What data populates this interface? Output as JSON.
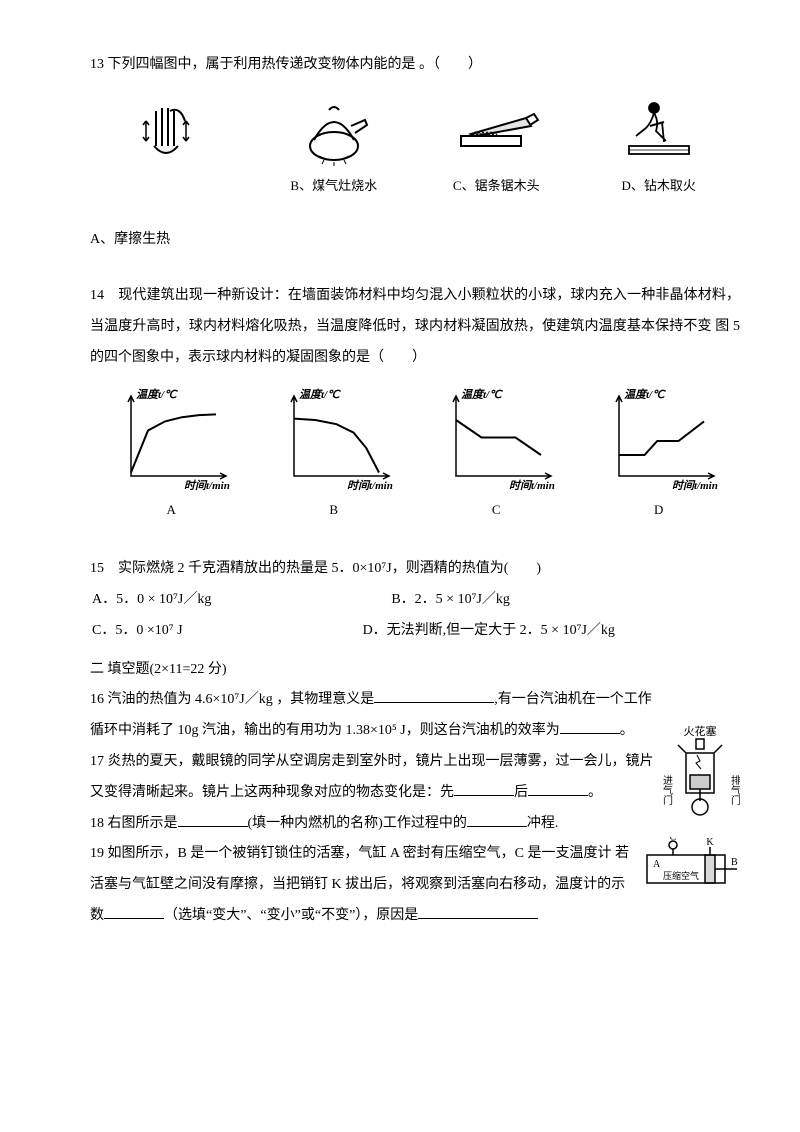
{
  "q13": {
    "stem": "13 下列四幅图中，属于利用热传递改变物体内能的是 。（　　）",
    "optA": "A、摩擦生热",
    "optB": "B、煤气灶烧水",
    "optC": "C、锯条锯木头",
    "optD": "D、钻木取火"
  },
  "q14": {
    "stem": "14　现代建筑出现一种新设计：在墙面装饰材料中均匀混入小颗粒状的小球，球内充入一种非晶体材料，当温度升高时，球内材料熔化吸热，当温度降低时，球内材料凝固放热，使建筑内温度基本保持不变 图 5 的四个图象中，表示球内材料的凝固图象的是（　　）",
    "ylabel": "温度t/℃",
    "xlabel": "时间t/min",
    "A": "A",
    "B": "B",
    "C": "C",
    "D": "D",
    "graphs": {
      "A": [
        [
          0,
          5
        ],
        [
          20,
          65
        ],
        [
          40,
          78
        ],
        [
          60,
          84
        ],
        [
          80,
          87
        ],
        [
          100,
          88
        ]
      ],
      "B": [
        [
          0,
          82
        ],
        [
          25,
          80
        ],
        [
          50,
          74
        ],
        [
          70,
          62
        ],
        [
          85,
          40
        ],
        [
          100,
          5
        ]
      ],
      "C": [
        [
          0,
          80
        ],
        [
          30,
          55
        ],
        [
          70,
          55
        ],
        [
          100,
          30
        ]
      ],
      "D": [
        [
          0,
          30
        ],
        [
          30,
          30
        ],
        [
          45,
          50
        ],
        [
          70,
          50
        ],
        [
          100,
          78
        ]
      ],
      "axis_color": "#000",
      "line_color": "#000"
    }
  },
  "q15": {
    "stem": "15　实际燃烧 2 千克酒精放出的热量是 5．0×10⁷J，则酒精的热值为(　　)",
    "A": "A．5．0 × 10⁷J／kg",
    "B": "B．2．5 × 10⁷J／kg",
    "C": "C．5．0 ×10⁷ J",
    "D": "D．无法判断,但一定大于 2．5 × 10⁷J／kg"
  },
  "section2": "二 填空题(2×11=22 分)",
  "q16": {
    "a": "16 汽油的热值为 4.6×10⁷J／kg ，其物理意义是",
    "b": ",有一台汽油机在一个工作循环中消耗了 10g 汽油，输出的有用功为 1.38×10⁵ J，则这台汽油机的效率为",
    "c": "。"
  },
  "q17": {
    "a": "17 炎热的夏天，戴眼镜的同学从空调房走到室外时，镜片上出现一层薄雾，过一会儿，镜片又变得清晰起来。镜片上这两种现象对应的物态变化是：先",
    "b": "后",
    "c": "。"
  },
  "q18": {
    "a": "18 右图所示是",
    "b": "(填一种内燃机的名称)工作过程中的",
    "c": "冲程."
  },
  "q19": {
    "a": "19 如图所示，B 是一个被销钉锁住的活塞，气缸 A 密封有压缩空气，C 是一支温度计 若活塞与气缸壁之间没有摩擦，当把销钉 K 拔出后，将观察到活塞向右移动，温度计的示数",
    "b": "（选填“变大”、“变小”或“不变”），原因是"
  },
  "side_labels": {
    "spark": "火花塞",
    "in": "进气门",
    "out": "排气门",
    "c": "C",
    "k": "K",
    "a": "A",
    "b": "B",
    "air": "压缩空气"
  }
}
